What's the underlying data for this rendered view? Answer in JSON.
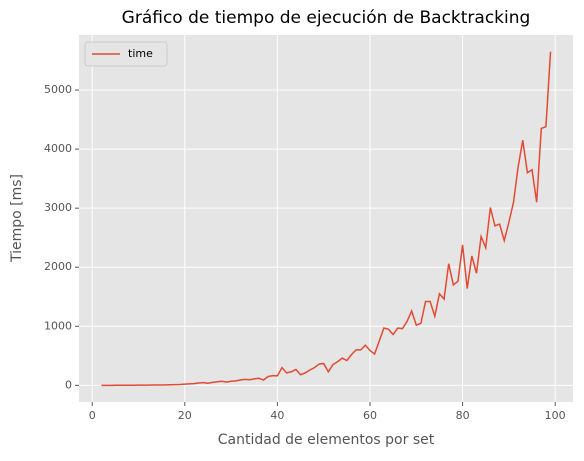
{
  "chart_data": {
    "type": "line",
    "title": "Gráfico de tiempo de ejecución de Backtracking",
    "x_label": "Cantidad de elementos por set",
    "y_label": "Tiempo [ms]",
    "x": [
      2,
      3,
      4,
      5,
      6,
      7,
      8,
      9,
      10,
      11,
      12,
      13,
      14,
      15,
      16,
      17,
      18,
      19,
      20,
      21,
      22,
      23,
      24,
      25,
      26,
      27,
      28,
      29,
      30,
      31,
      32,
      33,
      34,
      35,
      36,
      37,
      38,
      39,
      40,
      41,
      42,
      43,
      44,
      45,
      46,
      47,
      48,
      49,
      50,
      51,
      52,
      53,
      54,
      55,
      56,
      57,
      58,
      59,
      60,
      61,
      62,
      63,
      64,
      65,
      66,
      67,
      68,
      69,
      70,
      71,
      72,
      73,
      74,
      75,
      76,
      77,
      78,
      79,
      80,
      81,
      82,
      83,
      84,
      85,
      86,
      87,
      88,
      89,
      90,
      91,
      92,
      93,
      94,
      95,
      96,
      97,
      98,
      99
    ],
    "series": [
      {
        "name": "time",
        "color": "#e24a33",
        "values": [
          0,
          0,
          0,
          1,
          1,
          1,
          2,
          2,
          3,
          3,
          4,
          5,
          5,
          6,
          8,
          10,
          12,
          15,
          20,
          25,
          30,
          40,
          45,
          35,
          50,
          60,
          70,
          55,
          70,
          75,
          90,
          100,
          95,
          110,
          120,
          90,
          150,
          165,
          160,
          300,
          210,
          230,
          270,
          180,
          210,
          260,
          300,
          360,
          370,
          230,
          350,
          400,
          460,
          420,
          520,
          600,
          600,
          680,
          590,
          530,
          750,
          970,
          950,
          860,
          970,
          960,
          1080,
          1260,
          1020,
          1050,
          1420,
          1420,
          1170,
          1550,
          1460,
          2060,
          1700,
          1760,
          2380,
          1640,
          2190,
          1900,
          2520,
          2330,
          3010,
          2700,
          2730,
          2450,
          2760,
          3100,
          3700,
          4150,
          3600,
          3650,
          3100,
          4350,
          4380,
          5650
        ]
      }
    ],
    "xlim": [
      -2.85,
      103.85
    ],
    "ylim": [
      -282,
      5932
    ],
    "xticks": [
      0,
      20,
      40,
      60,
      80,
      100
    ],
    "yticks": [
      0,
      1000,
      2000,
      3000,
      4000,
      5000
    ],
    "grid": true,
    "legend": "upper-left"
  }
}
